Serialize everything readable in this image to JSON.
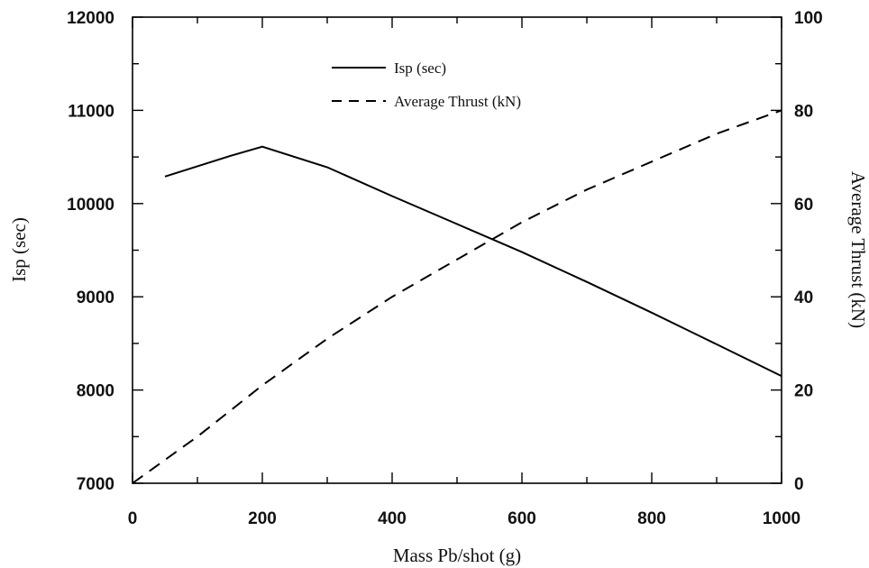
{
  "chart_data": {
    "type": "line",
    "title": "",
    "xlabel": "Mass Pb/shot (g)",
    "ylabel_left": "Isp (sec)",
    "ylabel_right": "Average Thrust (kN)",
    "xlim": [
      0,
      1000
    ],
    "ylim_left": [
      7000,
      12000
    ],
    "ylim_right": [
      0,
      100
    ],
    "x_ticks": [
      0,
      200,
      400,
      600,
      800,
      1000
    ],
    "y_ticks_left": [
      7000,
      8000,
      9000,
      10000,
      11000,
      12000
    ],
    "y_ticks_right": [
      0,
      20,
      40,
      60,
      80,
      100
    ],
    "grid": false,
    "legend_position": "top-center",
    "series": [
      {
        "name": "Isp (sec)",
        "axis": "left",
        "style": "solid",
        "x": [
          50,
          100,
          150,
          200,
          300,
          400,
          500,
          600,
          700,
          800,
          900,
          1000
        ],
        "values": [
          10290,
          10400,
          10510,
          10610,
          10390,
          10080,
          9780,
          9480,
          9160,
          8830,
          8490,
          8150
        ]
      },
      {
        "name": "Average Thrust (kN)",
        "axis": "right",
        "style": "dashed",
        "x": [
          0,
          50,
          100,
          200,
          300,
          400,
          500,
          600,
          700,
          800,
          900,
          1000
        ],
        "values": [
          0,
          5,
          10,
          21,
          31,
          40,
          48,
          56,
          63,
          69,
          75,
          80
        ]
      }
    ]
  },
  "colors": {
    "line": "#000000",
    "background": "#ffffff"
  }
}
